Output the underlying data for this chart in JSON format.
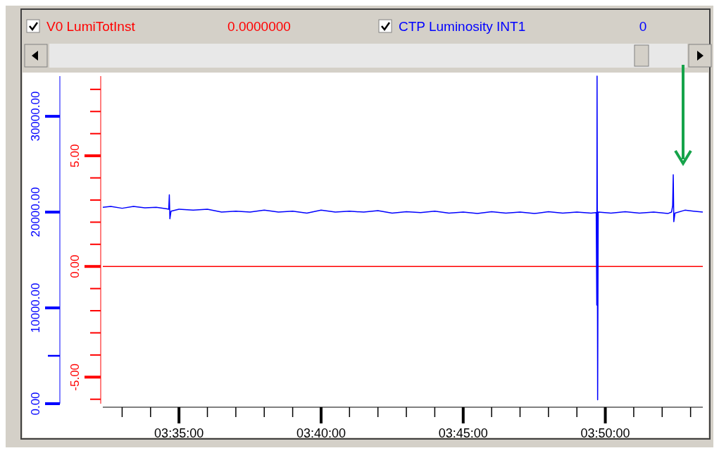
{
  "chart_data": {
    "type": "line",
    "legend": "top",
    "marker": "none",
    "line_style": "solid",
    "grid": false,
    "annotations": [
      "0.0000000",
      "0"
    ],
    "xlim": [
      3.53867,
      3.8905
    ],
    "xticks": [
      {
        "value": 3.55,
        "label": null
      },
      {
        "value": 3.56667,
        "label": null
      },
      {
        "value": 3.58333,
        "label": "03:35:00"
      },
      {
        "value": 3.6,
        "label": null
      },
      {
        "value": 3.61667,
        "label": null
      },
      {
        "value": 3.63333,
        "label": null
      },
      {
        "value": 3.65,
        "label": null
      },
      {
        "value": 3.66667,
        "label": "03:40:00"
      },
      {
        "value": 3.68333,
        "label": null
      },
      {
        "value": 3.7,
        "label": null
      },
      {
        "value": 3.71667,
        "label": null
      },
      {
        "value": 3.73333,
        "label": null
      },
      {
        "value": 3.75,
        "label": "03:45:00"
      },
      {
        "value": 3.76667,
        "label": null
      },
      {
        "value": 3.78333,
        "label": null
      },
      {
        "value": 3.8,
        "label": null
      },
      {
        "value": 3.81667,
        "label": null
      },
      {
        "value": 3.83333,
        "label": "03:50:00"
      },
      {
        "value": 3.85,
        "label": null
      },
      {
        "value": 3.86667,
        "label": null
      },
      {
        "value": 3.88333,
        "label": null
      }
    ],
    "ylim": [
      0,
      34200
    ],
    "yticks": [
      {
        "value": 0,
        "label": "0.00"
      },
      {
        "value": 5000,
        "label": null
      },
      {
        "value": 10000,
        "label": "10000.00"
      },
      {
        "value": 20000,
        "label": "20000.00"
      },
      {
        "value": 30000,
        "label": "30000.00"
      }
    ],
    "y2lim": [
      -6.2,
      8.6
    ],
    "y2ticks": [
      {
        "value": -6,
        "label": null
      },
      {
        "value": -5,
        "label": "-5.00"
      },
      {
        "value": -4,
        "label": null
      },
      {
        "value": -3,
        "label": null
      },
      {
        "value": -2,
        "label": null
      },
      {
        "value": -1,
        "label": null
      },
      {
        "value": 0,
        "label": "0.00"
      },
      {
        "value": 1,
        "label": null
      },
      {
        "value": 2,
        "label": null
      },
      {
        "value": 3,
        "label": null
      },
      {
        "value": 4,
        "label": null
      },
      {
        "value": 5,
        "label": "5.00"
      },
      {
        "value": 6,
        "label": null
      },
      {
        "value": 7,
        "label": null
      },
      {
        "value": 8,
        "label": null
      }
    ],
    "series": [
      {
        "name": "V0 LumiTotInst",
        "color": "#ff0000",
        "axis": "y2",
        "x": [
          3.53867,
          3.8905
        ],
        "values": [
          0,
          0
        ]
      },
      {
        "name": "CTP Luminosity INT1",
        "color": "#0000ff",
        "axis": "y",
        "x": [
          3.53867,
          3.54333,
          3.55,
          3.55667,
          3.56333,
          3.57,
          3.57583,
          3.57733,
          3.57767,
          3.578,
          3.57867,
          3.58333,
          3.59167,
          3.6,
          3.60833,
          3.61667,
          3.625,
          3.63333,
          3.64167,
          3.65,
          3.65833,
          3.66667,
          3.675,
          3.68333,
          3.69167,
          3.7,
          3.70833,
          3.71667,
          3.725,
          3.73333,
          3.74167,
          3.75,
          3.75833,
          3.76667,
          3.775,
          3.78333,
          3.79167,
          3.8,
          3.80833,
          3.81667,
          3.825,
          3.828,
          3.82833,
          3.8285,
          3.82883,
          3.82917,
          3.83667,
          3.845,
          3.85333,
          3.86167,
          3.87,
          3.87217,
          3.87283,
          3.87317,
          3.8735,
          3.87417,
          3.88,
          3.885,
          3.8905
        ],
        "values": [
          20500,
          20600,
          20400,
          20600,
          20450,
          20500,
          20350,
          20300,
          21800,
          19300,
          20100,
          20300,
          20200,
          20300,
          20000,
          20100,
          20000,
          20200,
          20000,
          20100,
          19900,
          20200,
          20000,
          20100,
          20000,
          20150,
          19900,
          20050,
          19950,
          20100,
          19900,
          20000,
          19850,
          20050,
          19900,
          20000,
          19850,
          20050,
          19900,
          20000,
          19900,
          19950,
          10300,
          34200,
          400,
          20000,
          19900,
          20050,
          19900,
          20000,
          19850,
          20000,
          20700,
          23900,
          19000,
          19900,
          20200,
          20100,
          20000
        ]
      }
    ]
  }
}
